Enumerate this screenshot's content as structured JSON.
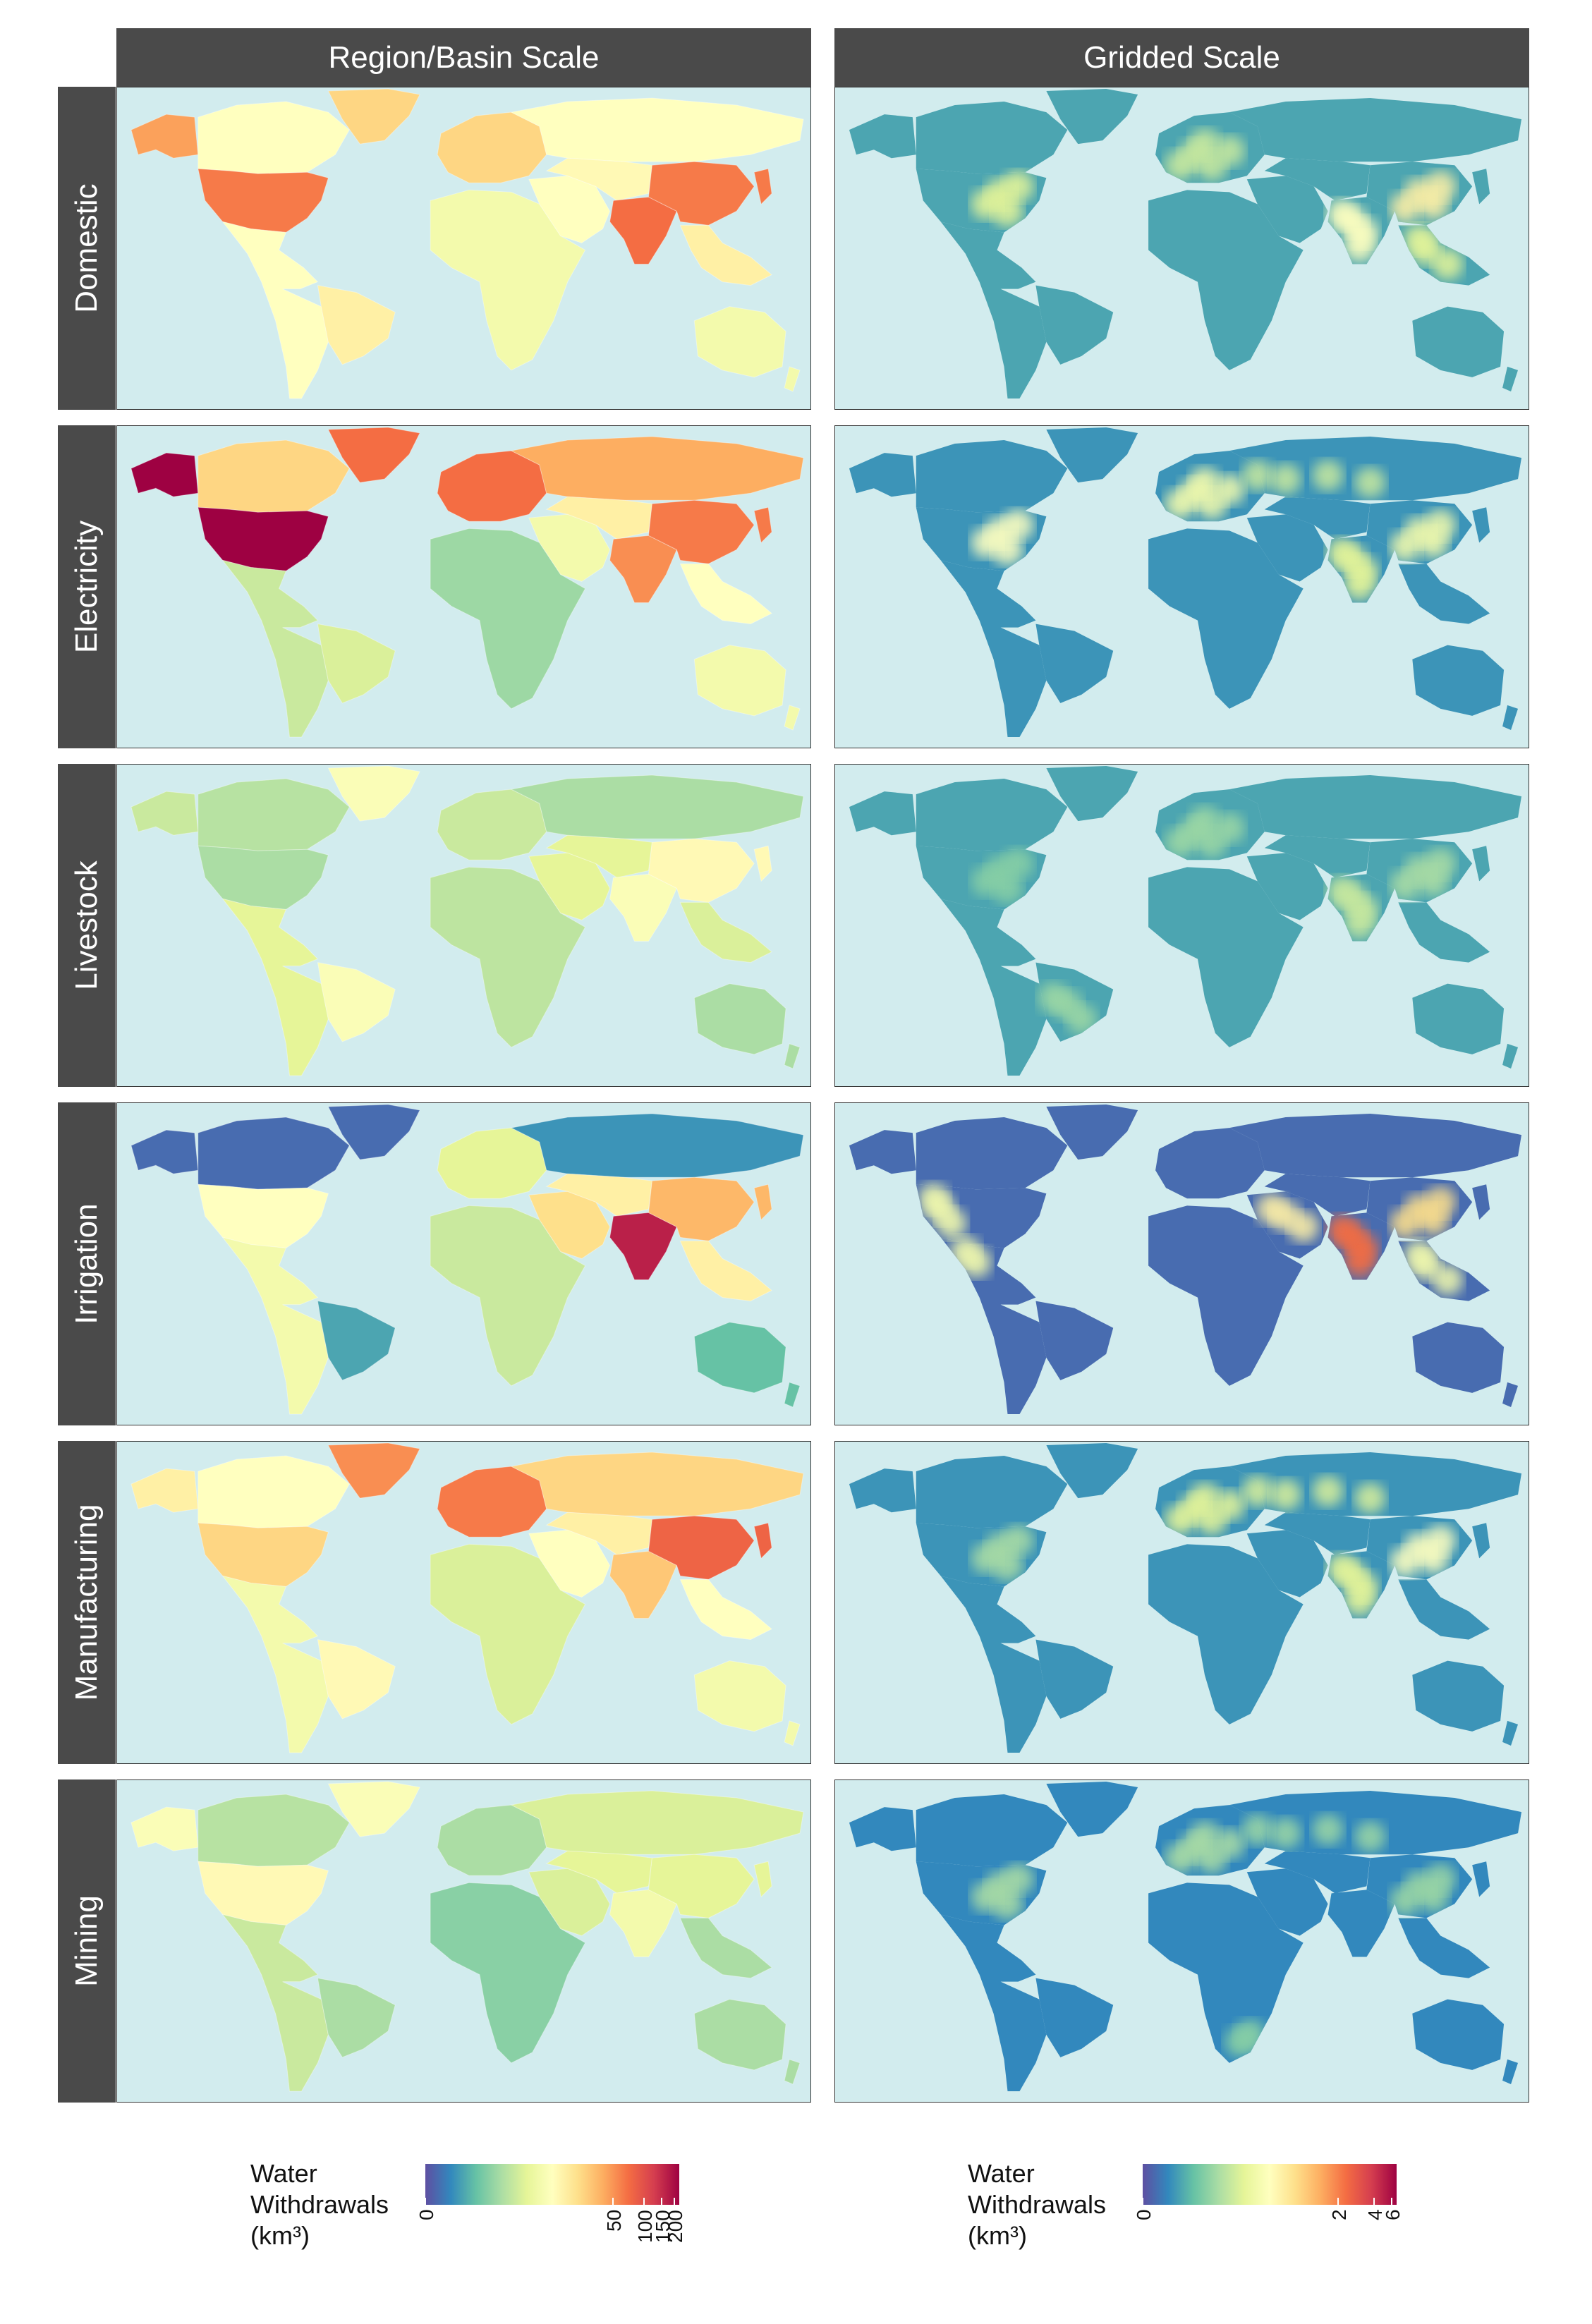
{
  "columns": [
    "Region/Basin Scale",
    "Gridded Scale"
  ],
  "rows": [
    "Domestic",
    "Electricity",
    "Livestock",
    "Irrigation",
    "Manufacturing",
    "Mining"
  ],
  "colors": {
    "ocean": "#d2ecee",
    "strip": "#4a4a4a",
    "scale": [
      "#5e4fa2",
      "#3288bd",
      "#66c2a5",
      "#abdda4",
      "#e6f598",
      "#ffffbf",
      "#fee08b",
      "#fdae61",
      "#f46d43",
      "#d53e4f",
      "#9e0142"
    ]
  },
  "regional_levels": {
    "Domestic": {
      "north_america": 0.78,
      "alaska": 0.72,
      "canada": 0.5,
      "greenland": 0.62,
      "latin_america": 0.5,
      "brazil": 0.55,
      "europe": 0.62,
      "russia": 0.5,
      "africa": 0.45,
      "middle_east": 0.5,
      "central_asia": 0.52,
      "india": 0.8,
      "china": 0.78,
      "southeast_asia": 0.55,
      "australia": 0.45
    },
    "Electricity": {
      "north_america": 1.0,
      "alaska": 1.0,
      "canada": 0.62,
      "greenland": 0.8,
      "latin_america": 0.35,
      "brazil": 0.38,
      "europe": 0.8,
      "russia": 0.7,
      "africa": 0.28,
      "middle_east": 0.45,
      "central_asia": 0.55,
      "india": 0.75,
      "china": 0.78,
      "southeast_asia": 0.5,
      "australia": 0.45
    },
    "Livestock": {
      "north_america": 0.3,
      "alaska": 0.35,
      "canada": 0.32,
      "greenland": 0.48,
      "latin_america": 0.4,
      "brazil": 0.48,
      "europe": 0.35,
      "russia": 0.3,
      "africa": 0.33,
      "middle_east": 0.4,
      "central_asia": 0.4,
      "india": 0.48,
      "china": 0.52,
      "southeast_asia": 0.38,
      "australia": 0.3
    },
    "Irrigation": {
      "north_america": 0.5,
      "alaska": 0.05,
      "canada": 0.05,
      "greenland": 0.05,
      "latin_america": 0.45,
      "brazil": 0.15,
      "europe": 0.4,
      "russia": 0.12,
      "africa": 0.35,
      "middle_east": 0.6,
      "central_asia": 0.55,
      "india": 0.95,
      "china": 0.68,
      "southeast_asia": 0.55,
      "australia": 0.2
    },
    "Manufacturing": {
      "north_america": 0.62,
      "alaska": 0.55,
      "canada": 0.5,
      "greenland": 0.75,
      "latin_america": 0.45,
      "brazil": 0.52,
      "europe": 0.78,
      "russia": 0.62,
      "africa": 0.38,
      "middle_east": 0.5,
      "central_asia": 0.55,
      "india": 0.65,
      "china": 0.82,
      "southeast_asia": 0.5,
      "australia": 0.45
    },
    "Mining": {
      "north_america": 0.52,
      "alaska": 0.48,
      "canada": 0.32,
      "greenland": 0.48,
      "latin_america": 0.35,
      "brazil": 0.3,
      "europe": 0.3,
      "russia": 0.38,
      "africa": 0.25,
      "middle_east": 0.38,
      "central_asia": 0.4,
      "india": 0.45,
      "china": 0.4,
      "southeast_asia": 0.3,
      "australia": 0.3
    }
  },
  "gridded_levels": {
    "Domestic": {
      "base": 0.15,
      "hotspots": [
        [
          "east_us",
          0.4
        ],
        [
          "europe",
          0.35
        ],
        [
          "india",
          0.5
        ],
        [
          "china",
          0.55
        ],
        [
          "se_asia",
          0.4
        ]
      ]
    },
    "Electricity": {
      "base": 0.12,
      "hotspots": [
        [
          "east_us",
          0.5
        ],
        [
          "europe",
          0.45
        ],
        [
          "russia",
          0.35
        ],
        [
          "india",
          0.4
        ],
        [
          "china",
          0.45
        ]
      ]
    },
    "Livestock": {
      "base": 0.15,
      "hotspots": [
        [
          "east_us",
          0.25
        ],
        [
          "europe",
          0.28
        ],
        [
          "india",
          0.35
        ],
        [
          "china",
          0.3
        ],
        [
          "brazil",
          0.28
        ]
      ]
    },
    "Irrigation": {
      "base": 0.05,
      "hotspots": [
        [
          "west_us",
          0.45
        ],
        [
          "mexico",
          0.45
        ],
        [
          "middle_east",
          0.55
        ],
        [
          "india",
          0.8
        ],
        [
          "china",
          0.6
        ],
        [
          "se_asia",
          0.45
        ]
      ]
    },
    "Manufacturing": {
      "base": 0.12,
      "hotspots": [
        [
          "east_us",
          0.3
        ],
        [
          "europe",
          0.4
        ],
        [
          "russia",
          0.38
        ],
        [
          "india",
          0.4
        ],
        [
          "china",
          0.5
        ]
      ]
    },
    "Mining": {
      "base": 0.1,
      "hotspots": [
        [
          "east_us",
          0.3
        ],
        [
          "europe",
          0.3
        ],
        [
          "russia",
          0.28
        ],
        [
          "china",
          0.28
        ],
        [
          "south_africa",
          0.25
        ]
      ]
    }
  },
  "legends": [
    {
      "title": "Water\nWithdrawals\n(km³)",
      "ticks": [
        {
          "label": "0",
          "pos": 0.0
        },
        {
          "label": "50",
          "pos": 0.74
        },
        {
          "label": "100",
          "pos": 0.86
        },
        {
          "label": "150",
          "pos": 0.93
        },
        {
          "label": "200",
          "pos": 0.98
        }
      ]
    },
    {
      "title": "Water\nWithdrawals\n(km³)",
      "ticks": [
        {
          "label": "0",
          "pos": 0.0
        },
        {
          "label": "2",
          "pos": 0.77
        },
        {
          "label": "4",
          "pos": 0.91
        },
        {
          "label": "6",
          "pos": 0.98
        }
      ]
    }
  ]
}
